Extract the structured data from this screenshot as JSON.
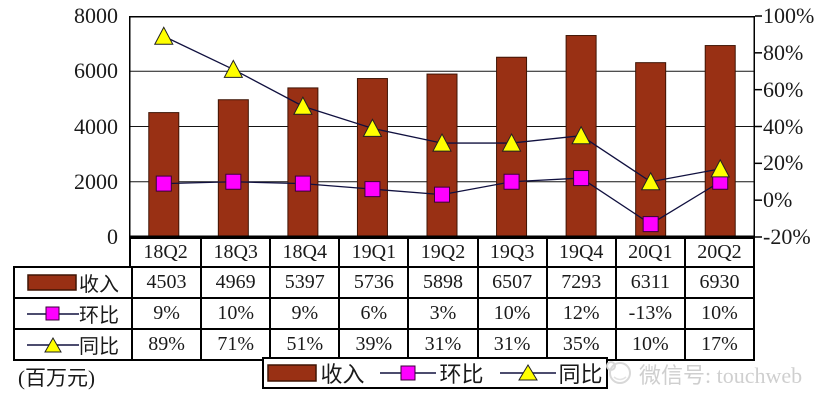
{
  "unit_label": "(百万元)",
  "watermark": {
    "text": "微信号: touchweb"
  },
  "legend": {
    "items": [
      "收入",
      "环比",
      "同比"
    ]
  },
  "colors": {
    "bar_fill": "#993014",
    "bar_border": "#3f1404",
    "line": "#10103f",
    "square_marker": "#ff00ff",
    "triangle_marker": "#ffff00",
    "grid": "#151515",
    "watermark_gray": "#cfcfcf"
  },
  "chart_data": {
    "type": "bar",
    "subtype": "combo-bar-line-dual-axis",
    "categories": [
      "18Q2",
      "18Q3",
      "18Q4",
      "19Q1",
      "19Q2",
      "19Q3",
      "19Q4",
      "20Q1",
      "20Q2"
    ],
    "series": [
      {
        "name": "收入",
        "type": "bar",
        "axis": "left",
        "values": [
          4503,
          4969,
          5397,
          5736,
          5898,
          6507,
          7293,
          6311,
          6930
        ]
      },
      {
        "name": "环比",
        "type": "line",
        "axis": "right",
        "marker": "square",
        "values": [
          9,
          10,
          9,
          6,
          3,
          10,
          12,
          -13,
          10
        ],
        "labels": [
          "9%",
          "10%",
          "9%",
          "6%",
          "3%",
          "10%",
          "12%",
          "-13%",
          "10%"
        ]
      },
      {
        "name": "同比",
        "type": "line",
        "axis": "right",
        "marker": "triangle",
        "values": [
          89,
          71,
          51,
          39,
          31,
          31,
          35,
          10,
          17
        ],
        "labels": [
          "89%",
          "71%",
          "51%",
          "39%",
          "31%",
          "31%",
          "35%",
          "10%",
          "17%"
        ]
      }
    ],
    "left_axis": {
      "min": 0,
      "max": 8000,
      "tick_step": 2000,
      "ticks": [
        "8000",
        "6000",
        "4000",
        "2000",
        "0"
      ]
    },
    "right_axis": {
      "min": -20,
      "max": 100,
      "tick_step": 20,
      "ticks": [
        "100%",
        "80%",
        "60%",
        "40%",
        "20%",
        "0%",
        "-20%"
      ]
    },
    "grid": "horizontal-only",
    "legend_position": "bottom",
    "title": "",
    "xlabel": "",
    "ylabel_left_unit": "(百万元)"
  },
  "table": {
    "rows": [
      {
        "label": "收入",
        "cells": [
          "4503",
          "4969",
          "5397",
          "5736",
          "5898",
          "6507",
          "7293",
          "6311",
          "6930"
        ]
      },
      {
        "label": "环比",
        "cells": [
          "9%",
          "10%",
          "9%",
          "6%",
          "3%",
          "10%",
          "12%",
          "-13%",
          "10%"
        ]
      },
      {
        "label": "同比",
        "cells": [
          "89%",
          "71%",
          "51%",
          "39%",
          "31%",
          "31%",
          "35%",
          "10%",
          "17%"
        ]
      }
    ]
  }
}
